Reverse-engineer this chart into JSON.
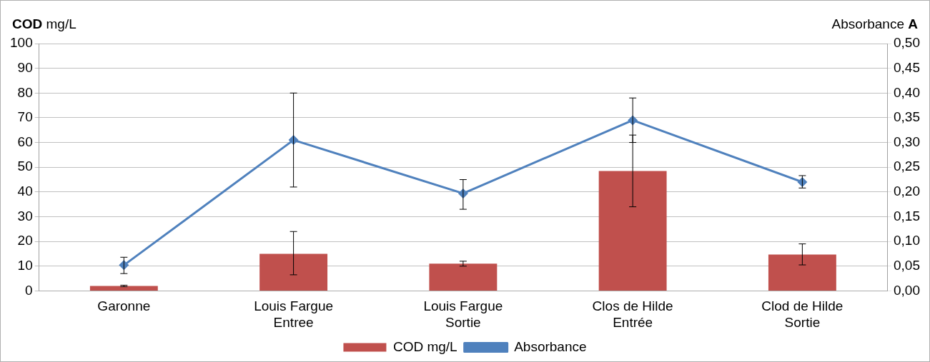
{
  "chart_data": {
    "type": "bar",
    "categories": [
      "Garonne",
      "Louis Fargue Entree",
      "Louis Fargue Sortie",
      "Clos de Hilde Entrée",
      "Clod de Hilde Sortie"
    ],
    "ylabel": "COD mg/L",
    "y2label": "Absorbance A",
    "series": [
      {
        "name": "COD mg/L",
        "color": "#c0504d",
        "values": [
          2,
          15,
          11,
          48.5,
          14.7
        ],
        "errors": [
          0.3,
          [
            6.5,
            24
          ],
          [
            10,
            12
          ],
          [
            34,
            63
          ],
          [
            10.5,
            19
          ]
        ]
      },
      {
        "name": "Absorbance",
        "type": "line",
        "axis": "y2",
        "color": "#4f81bd",
        "marker": "diamond",
        "values": [
          0.052,
          0.305,
          0.197,
          0.345,
          0.22
        ],
        "errors": [
          [
            0.035,
            0.068
          ],
          [
            0.21,
            0.4
          ],
          [
            0.165,
            0.225
          ],
          [
            0.3,
            0.39
          ],
          [
            0.208,
            0.233
          ]
        ]
      }
    ],
    "ylim": [
      0,
      100
    ],
    "yticks": [
      0,
      10,
      20,
      30,
      40,
      50,
      60,
      70,
      80,
      90,
      100
    ],
    "y2lim": [
      0,
      0.5
    ],
    "y2ticks": [
      {
        "value": 0,
        "label": "0,00"
      },
      {
        "value": 0.05,
        "label": "0,05"
      },
      {
        "value": 0.1,
        "label": "0,10"
      },
      {
        "value": 0.15,
        "label": "0,15"
      },
      {
        "value": 0.2,
        "label": "0,20"
      },
      {
        "value": 0.25,
        "label": "0,25"
      },
      {
        "value": 0.3,
        "label": "0,30"
      },
      {
        "value": 0.35,
        "label": "0,35"
      },
      {
        "value": 0.4,
        "label": "0,40"
      },
      {
        "value": 0.45,
        "label": "0,45"
      },
      {
        "value": 0.5,
        "label": "0,50"
      }
    ],
    "grid": "y",
    "legend": "bottom"
  }
}
